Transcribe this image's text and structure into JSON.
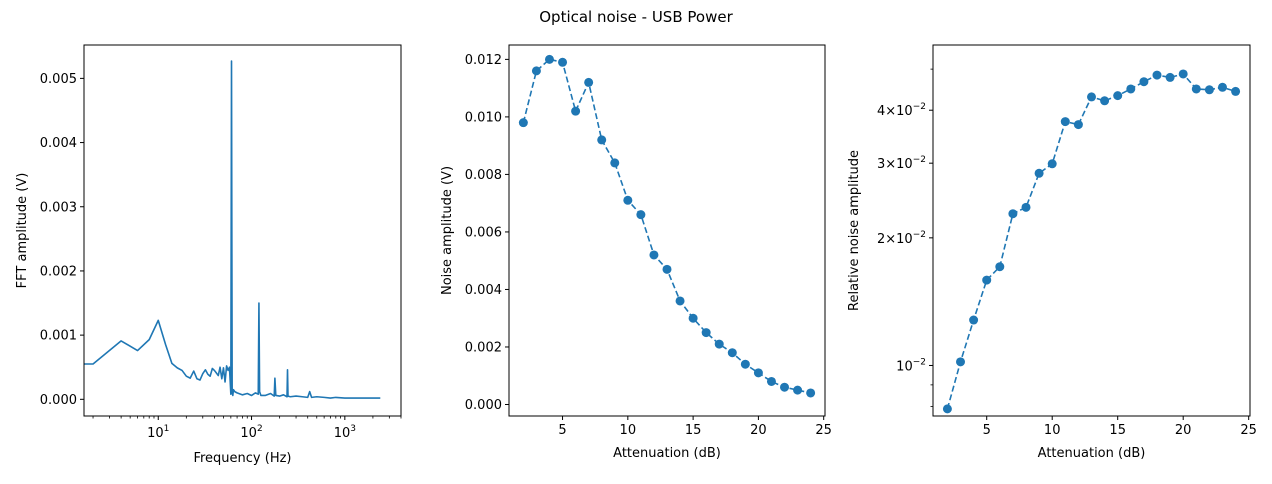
{
  "figure": {
    "suptitle": "Optical noise - USB Power"
  },
  "chart_data": [
    {
      "type": "line",
      "xlabel": "Frequency (Hz)",
      "ylabel": "FFT amplitude (V)",
      "xscale": "log",
      "xlim": [
        1.6,
        4000
      ],
      "ylim": [
        -0.00026,
        0.00552
      ],
      "xticks": [
        {
          "value": 10,
          "base": "10",
          "exp": "1"
        },
        {
          "value": 100,
          "base": "10",
          "exp": "2"
        },
        {
          "value": 1000,
          "base": "10",
          "exp": "3"
        }
      ],
      "yticks": [
        {
          "value": 0,
          "label": "0.000"
        },
        {
          "value": 0.001,
          "label": "0.001"
        },
        {
          "value": 0.002,
          "label": "0.002"
        },
        {
          "value": 0.003,
          "label": "0.003"
        },
        {
          "value": 0.004,
          "label": "0.004"
        },
        {
          "value": 0.005,
          "label": "0.005"
        }
      ],
      "color": "#1f77b4",
      "series": [
        {
          "x": [
            1.6,
            2,
            4,
            6,
            8,
            10,
            12,
            14,
            16,
            18,
            20,
            22,
            24,
            26,
            28,
            30,
            32,
            34,
            36,
            38,
            40,
            42,
            44,
            46,
            48,
            50,
            52,
            54,
            56,
            58,
            60,
            61,
            62,
            63,
            64,
            66,
            70,
            80,
            90,
            100,
            110,
            118,
            120,
            122,
            126,
            140,
            160,
            175,
            178,
            182,
            200,
            220,
            240,
            243,
            246,
            260,
            300,
            350,
            400,
            420,
            440,
            500,
            600,
            700,
            800,
            1000,
            1200,
            1500,
            2000,
            2400
          ],
          "y": [
            0.00055,
            0.00055,
            0.00091,
            0.00076,
            0.00093,
            0.00123,
            0.00085,
            0.00056,
            0.00049,
            0.00045,
            0.00036,
            0.00033,
            0.00044,
            0.00032,
            0.0003,
            0.0004,
            0.00046,
            0.00039,
            0.00036,
            0.00048,
            0.00045,
            0.00041,
            0.00037,
            0.0005,
            0.00032,
            0.00049,
            0.00027,
            0.00052,
            0.00045,
            0.0005,
            8e-05,
            0.00527,
            0.0001,
            6e-05,
            0.00015,
            0.00012,
            0.0001,
            7e-05,
            9e-05,
            6e-05,
            0.0001,
            8e-05,
            0.0015,
            0.00012,
            6e-05,
            6e-05,
            9e-05,
            5e-05,
            0.00033,
            6e-05,
            5e-05,
            7e-05,
            4e-05,
            0.00046,
            5e-05,
            4e-05,
            5e-05,
            4e-05,
            3e-05,
            0.00012,
            3e-05,
            4e-05,
            3e-05,
            2e-05,
            3e-05,
            2e-05,
            2e-05,
            2e-05,
            2e-05,
            2e-05
          ]
        }
      ]
    },
    {
      "type": "line",
      "xlabel": "Attenuation (dB)",
      "ylabel": "Noise amplitude (V)",
      "xlim": [
        0.9,
        25.1
      ],
      "ylim": [
        -0.0004,
        0.0125
      ],
      "xticks": [
        {
          "value": 5,
          "label": "5"
        },
        {
          "value": 10,
          "label": "10"
        },
        {
          "value": 15,
          "label": "15"
        },
        {
          "value": 20,
          "label": "20"
        },
        {
          "value": 25,
          "label": "25"
        }
      ],
      "yticks": [
        {
          "value": 0,
          "label": "0.000"
        },
        {
          "value": 0.002,
          "label": "0.002"
        },
        {
          "value": 0.004,
          "label": "0.004"
        },
        {
          "value": 0.006,
          "label": "0.006"
        },
        {
          "value": 0.008,
          "label": "0.008"
        },
        {
          "value": 0.01,
          "label": "0.010"
        },
        {
          "value": 0.012,
          "label": "0.012"
        }
      ],
      "color": "#1f77b4",
      "line_style": "dashed",
      "marker": "circle",
      "series": [
        {
          "x": [
            2,
            3,
            4,
            5,
            6,
            7,
            8,
            9,
            10,
            11,
            12,
            13,
            14,
            15,
            16,
            17,
            18,
            19,
            20,
            21,
            22,
            23,
            24
          ],
          "y": [
            0.0098,
            0.0116,
            0.012,
            0.0119,
            0.0102,
            0.0112,
            0.0092,
            0.0084,
            0.0071,
            0.0066,
            0.0052,
            0.0047,
            0.0036,
            0.003,
            0.0025,
            0.0021,
            0.0018,
            0.0014,
            0.0011,
            0.0008,
            0.0006,
            0.0005,
            0.0004
          ]
        }
      ]
    },
    {
      "type": "line",
      "xlabel": "Attenuation (dB)",
      "ylabel": "Relative noise amplitude",
      "yscale": "log",
      "xlim": [
        0.9,
        25.1
      ],
      "ylim": [
        0.0076,
        0.057
      ],
      "xticks": [
        {
          "value": 5,
          "label": "5"
        },
        {
          "value": 10,
          "label": "10"
        },
        {
          "value": 15,
          "label": "15"
        },
        {
          "value": 20,
          "label": "20"
        },
        {
          "value": 25,
          "label": "25"
        }
      ],
      "yticks": [
        {
          "value": 0.01,
          "label": "",
          "base": "10",
          "exp": "−2"
        },
        {
          "value": 0.02,
          "label": "2×",
          "base": "10",
          "exp": "−2"
        },
        {
          "value": 0.03,
          "label": "3×",
          "base": "10",
          "exp": "−2"
        },
        {
          "value": 0.04,
          "label": "4×",
          "base": "10",
          "exp": "−2"
        }
      ],
      "minor_yticks": [
        0.008,
        0.009,
        0.05
      ],
      "color": "#1f77b4",
      "line_style": "dashed",
      "marker": "circle",
      "series": [
        {
          "x": [
            2,
            3,
            4,
            5,
            6,
            7,
            8,
            9,
            10,
            11,
            12,
            13,
            14,
            15,
            16,
            17,
            18,
            19,
            20,
            21,
            22,
            23,
            24
          ],
          "y": [
            0.0079,
            0.0102,
            0.0128,
            0.0159,
            0.0171,
            0.0228,
            0.0236,
            0.0284,
            0.0299,
            0.0376,
            0.037,
            0.043,
            0.0421,
            0.0433,
            0.0449,
            0.0467,
            0.0484,
            0.0478,
            0.0487,
            0.0449,
            0.0447,
            0.0453,
            0.0443
          ]
        }
      ]
    }
  ]
}
